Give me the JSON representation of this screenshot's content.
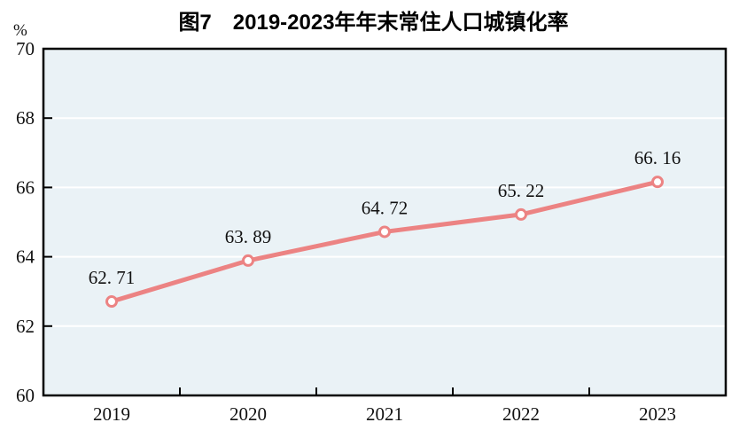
{
  "page": {
    "background": "#ffffff"
  },
  "chart_data": {
    "type": "line",
    "title": "图7　2019-2023年年末常住人口城镇化率",
    "unit": "%",
    "categories": [
      "2019",
      "2020",
      "2021",
      "2022",
      "2023"
    ],
    "values": [
      62.71,
      63.89,
      64.72,
      65.22,
      66.16
    ],
    "data_labels": [
      "62.71",
      "63.89",
      "64.72",
      "65.22",
      "66.16"
    ],
    "ylim": [
      60,
      70
    ],
    "ystep": 2,
    "ytick_labels": [
      "60",
      "62",
      "64",
      "66",
      "68",
      "70"
    ],
    "xlabel": "",
    "ylabel": "%",
    "grid": true,
    "legend_position": "none",
    "colors": {
      "line": "#ec8383",
      "marker_fill": "#ffffff",
      "marker_stroke": "#ec8383",
      "plot_background": "#eaf2f6",
      "gridline": "#ffffff",
      "axis": "#000000",
      "text": "#111111"
    }
  }
}
